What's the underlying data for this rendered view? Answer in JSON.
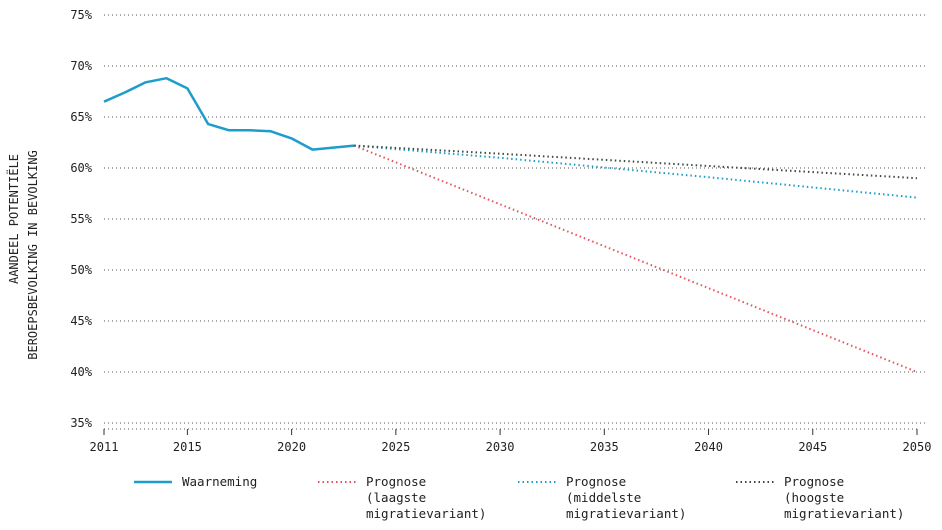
{
  "chart_data": {
    "type": "line",
    "ylabel_lines": [
      "AANDEEL POTENTIËLE",
      "BEROEPSBEVOLKING IN BEVOLKING"
    ],
    "xlabel": "",
    "xlim": [
      2011,
      2050
    ],
    "ylim": [
      35,
      75
    ],
    "x_ticks": [
      "2011",
      "2015",
      "2020",
      "2025",
      "2030",
      "2035",
      "2040",
      "2045",
      "2050"
    ],
    "y_ticks": [
      "35%",
      "40%",
      "45%",
      "50%",
      "55%",
      "60%",
      "65%",
      "70%",
      "75%"
    ],
    "grid": true,
    "legend_position": "bottom",
    "series": [
      {
        "name": "Waarneming",
        "color": "#1e9ccc",
        "style": "solid",
        "x": [
          2011,
          2012,
          2013,
          2014,
          2015,
          2016,
          2017,
          2018,
          2019,
          2020,
          2021,
          2022,
          2023
        ],
        "y": [
          66.5,
          67.4,
          68.4,
          68.8,
          67.8,
          64.3,
          63.7,
          63.7,
          63.6,
          62.9,
          61.8,
          62.0,
          62.2
        ]
      },
      {
        "name": "Prognose\n(laagste\nmigratievariant)",
        "color": "#e8525a",
        "style": "dotted",
        "x": [
          2023,
          2050
        ],
        "y": [
          62.2,
          40.0
        ]
      },
      {
        "name": "Prognose\n(middelste\nmigratievariant)",
        "color": "#1e9ccc",
        "style": "dotted",
        "x": [
          2023,
          2030,
          2040,
          2050
        ],
        "y": [
          62.2,
          61.0,
          59.1,
          57.1
        ]
      },
      {
        "name": "Prognose\n(hoogste\nmigratievariant)",
        "color": "#3a4a3f",
        "style": "dotted",
        "x": [
          2023,
          2030,
          2040,
          2050
        ],
        "y": [
          62.2,
          61.4,
          60.2,
          59.0
        ]
      }
    ]
  }
}
